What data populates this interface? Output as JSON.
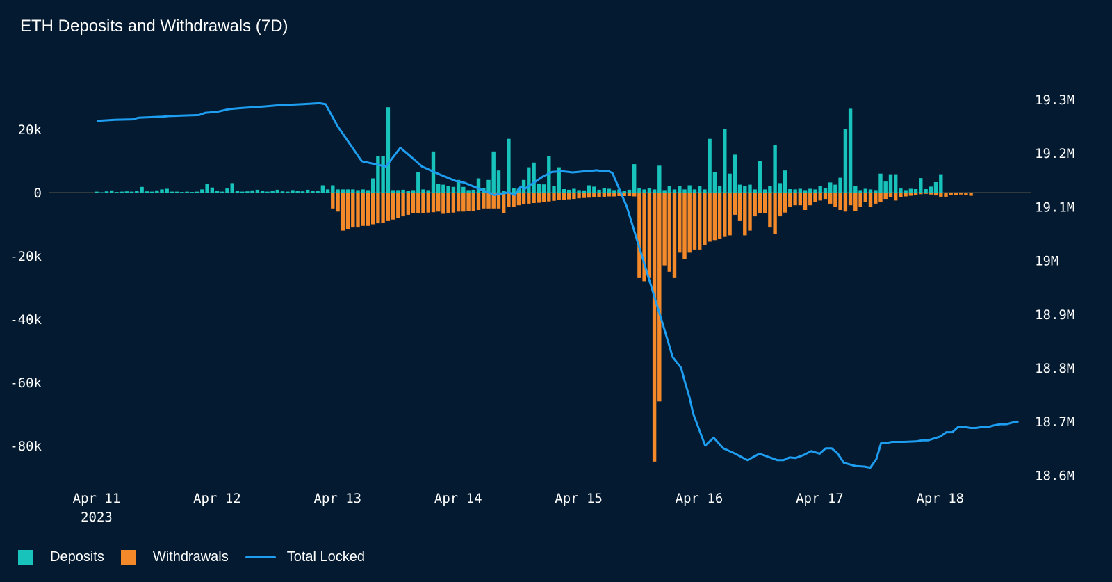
{
  "title": "ETH Deposits and Withdrawals (7D)",
  "colors": {
    "background": "#041a30",
    "deposits": "#17c3bb",
    "withdrawals": "#f4892a",
    "total_locked": "#1e9ef0",
    "zero_line": "#5a5a4c"
  },
  "legend": {
    "deposits": "Deposits",
    "withdrawals": "Withdrawals",
    "total_locked": "Total Locked"
  },
  "chart_data": {
    "type": "bar",
    "title": "ETH Deposits and Withdrawals (7D)",
    "x_ticks": [
      {
        "day": 0,
        "label": "Apr 11",
        "sublabel": "2023"
      },
      {
        "day": 1,
        "label": "Apr 12"
      },
      {
        "day": 2,
        "label": "Apr 13"
      },
      {
        "day": 3,
        "label": "Apr 14"
      },
      {
        "day": 4,
        "label": "Apr 15"
      },
      {
        "day": 5,
        "label": "Apr 16"
      },
      {
        "day": 6,
        "label": "Apr 17"
      },
      {
        "day": 7,
        "label": "Apr 18"
      }
    ],
    "x_unit": "days since Apr 11 2023 00:00",
    "xlim": [
      -0.4,
      7.75
    ],
    "y_left": {
      "ylim": [
        -90000,
        35000
      ],
      "ticks": [
        {
          "value": 20000,
          "label": "20k"
        },
        {
          "value": 0,
          "label": "0"
        },
        {
          "value": -20000,
          "label": "-20k"
        },
        {
          "value": -40000,
          "label": "-40k"
        },
        {
          "value": -60000,
          "label": "-60k"
        },
        {
          "value": -80000,
          "label": "-80k"
        }
      ]
    },
    "y_right": {
      "ylim": [
        18585000,
        19365000
      ],
      "ticks": [
        {
          "value": 19300000,
          "label": "19.3M"
        },
        {
          "value": 19200000,
          "label": "19.2M"
        },
        {
          "value": 19100000,
          "label": "19.1M"
        },
        {
          "value": 19000000,
          "label": "19M"
        },
        {
          "value": 18900000,
          "label": "18.9M"
        },
        {
          "value": 18800000,
          "label": "18.8M"
        },
        {
          "value": 18700000,
          "label": "18.7M"
        },
        {
          "value": 18600000,
          "label": "18.6M"
        }
      ]
    },
    "bar_interval_days": 0.0417,
    "bar_start_day": 0,
    "series": [
      {
        "name": "Deposits",
        "values": [
          300,
          100,
          400,
          700,
          200,
          300,
          400,
          300,
          500,
          1800,
          400,
          300,
          700,
          1000,
          1200,
          300,
          300,
          200,
          300,
          200,
          300,
          1000,
          2800,
          1600,
          600,
          300,
          1300,
          3000,
          500,
          300,
          400,
          700,
          900,
          500,
          300,
          500,
          900,
          400,
          300,
          800,
          500,
          400,
          900,
          600,
          600,
          2300,
          1000,
          2300,
          1000,
          1000,
          1000,
          1000,
          800,
          1000,
          800,
          4500,
          11500,
          11500,
          27000,
          800,
          800,
          900,
          500,
          800,
          6500,
          1000,
          800,
          13000,
          2800,
          2500,
          2000,
          1800,
          4000,
          1800,
          800,
          900,
          4500,
          1500,
          4000,
          13000,
          7000,
          500,
          17000,
          1400,
          1200,
          4000,
          8000,
          9500,
          2700,
          2600,
          11500,
          2200,
          8000,
          1100,
          900,
          1200,
          800,
          700,
          2300,
          1900,
          900,
          1500,
          1200,
          800,
          1000,
          500,
          900,
          9000,
          1500,
          1000,
          1500,
          1000,
          8500,
          800,
          2000,
          1000,
          2000,
          1000,
          2300,
          1000,
          2000,
          1000,
          17000,
          6500,
          2000,
          20000,
          6000,
          12000,
          2500,
          2000,
          2500,
          1000,
          10000,
          1000,
          2000,
          15000,
          3000,
          7000,
          1100,
          1000,
          1200,
          800,
          1200,
          1000,
          2000,
          1500,
          3200,
          2500,
          4700,
          20000,
          26500,
          2000,
          800,
          1200,
          1000,
          800,
          6000,
          3500,
          5800,
          5800,
          1300,
          800,
          1200,
          1100,
          4600,
          1100,
          1900,
          3300,
          5800
        ]
      },
      {
        "name": "Withdrawals",
        "values": [
          0,
          0,
          0,
          0,
          0,
          0,
          0,
          0,
          0,
          0,
          0,
          0,
          0,
          0,
          0,
          0,
          0,
          0,
          0,
          0,
          0,
          0,
          0,
          0,
          0,
          0,
          0,
          0,
          0,
          0,
          0,
          0,
          0,
          0,
          0,
          0,
          0,
          0,
          0,
          0,
          0,
          0,
          0,
          0,
          0,
          0,
          0,
          -5000,
          -6000,
          -12000,
          -11500,
          -11000,
          -11000,
          -10500,
          -10500,
          -10000,
          -9700,
          -9500,
          -9000,
          -8500,
          -8000,
          -7500,
          -7000,
          -6500,
          -6500,
          -6500,
          -6300,
          -6200,
          -6000,
          -6700,
          -6500,
          -6300,
          -6000,
          -6000,
          -5800,
          -5800,
          -5500,
          -5000,
          -5000,
          -5000,
          -5000,
          -6500,
          -4500,
          -4500,
          -4000,
          -3700,
          -3500,
          -3300,
          -3200,
          -3000,
          -2800,
          -2600,
          -2400,
          -2200,
          -2100,
          -2000,
          -1800,
          -1700,
          -1600,
          -1500,
          -1400,
          -1300,
          -1200,
          -1200,
          -1100,
          -1100,
          -1100,
          -1200,
          -27000,
          -28000,
          -27000,
          -85000,
          -66000,
          -23000,
          -25000,
          -27000,
          -19000,
          -21000,
          -19000,
          -18000,
          -18000,
          -16500,
          -15500,
          -15000,
          -14500,
          -14000,
          -13500,
          -7000,
          -9000,
          -13500,
          -12000,
          -7500,
          -6500,
          -6500,
          -11000,
          -13000,
          -7500,
          -6300,
          -4500,
          -4000,
          -4000,
          -5500,
          -4000,
          -3000,
          -2500,
          -2000,
          -3500,
          -4500,
          -5500,
          -6000,
          -4000,
          -5800,
          -4500,
          -3000,
          -4500,
          -3500,
          -3000,
          -2000,
          -1500,
          -2500,
          -1500,
          -1200,
          -1000,
          -700,
          -500,
          -400,
          -600,
          -900,
          -1300,
          -1300,
          -800,
          -700,
          -600,
          -800,
          -1000
        ]
      }
    ],
    "total_locked": {
      "name": "Total Locked",
      "x": [
        0,
        0.15,
        0.3,
        0.35,
        0.55,
        0.6,
        0.85,
        0.9,
        1,
        1.1,
        1.15,
        1.2,
        1.4,
        1.5,
        1.7,
        1.85,
        1.9,
        2,
        2.2,
        2.4,
        2.52,
        2.6,
        2.65,
        2.7,
        2.75,
        2.85,
        2.98,
        3.05,
        3.3,
        3.42,
        3.47,
        3.52,
        3.55,
        3.7,
        3.78,
        3.87,
        3.95,
        4.05,
        4.1,
        4.15,
        4.2,
        4.25,
        4.28,
        4.4,
        4.58,
        4.7,
        4.78,
        4.85,
        4.88,
        4.92,
        4.95,
        5.05,
        5.12,
        5.2,
        5.3,
        5.4,
        5.5,
        5.6,
        5.65,
        5.7,
        5.75,
        5.8,
        5.87,
        5.93,
        6.0,
        6.05,
        6.1,
        6.15,
        6.2,
        6.3,
        6.37,
        6.42,
        6.47,
        6.51,
        6.55,
        6.6,
        6.7,
        6.8,
        6.85,
        6.9,
        7.0,
        7.05,
        7.1,
        7.15,
        7.2,
        7.25,
        7.3,
        7.35,
        7.4,
        7.45,
        7.5,
        7.55,
        7.6,
        7.65
      ],
      "values": [
        19260000,
        19262000,
        19263000,
        19266000,
        19268000,
        19269000,
        19271000,
        19275000,
        19277000,
        19282000,
        19283000,
        19284000,
        19287000,
        19289000,
        19291000,
        19293000,
        19291000,
        19250000,
        19185000,
        19175000,
        19210000,
        19195000,
        19185000,
        19175000,
        19170000,
        19160000,
        19148000,
        19145000,
        19122000,
        19127000,
        19122000,
        19138000,
        19133000,
        19156000,
        19165000,
        19166000,
        19164000,
        19166000,
        19167000,
        19168000,
        19166000,
        19166000,
        19163000,
        19100000,
        18968000,
        18880000,
        18820000,
        18800000,
        18775000,
        18745000,
        18715000,
        18655000,
        18670000,
        18650000,
        18640000,
        18628000,
        18640000,
        18632000,
        18628000,
        18628000,
        18633000,
        18632000,
        18638000,
        18645000,
        18640000,
        18650000,
        18650000,
        18640000,
        18623000,
        18617000,
        18616000,
        18614000,
        18630000,
        18660000,
        18660000,
        18662000,
        18662000,
        18663000,
        18665000,
        18665000,
        18672000,
        18680000,
        18680000,
        18690000,
        18690000,
        18688000,
        18688000,
        18690000,
        18690000,
        18693000,
        18695000,
        18695000,
        18698000,
        18700000
      ]
    },
    "legend_position": "bottom-left",
    "grid": false
  }
}
